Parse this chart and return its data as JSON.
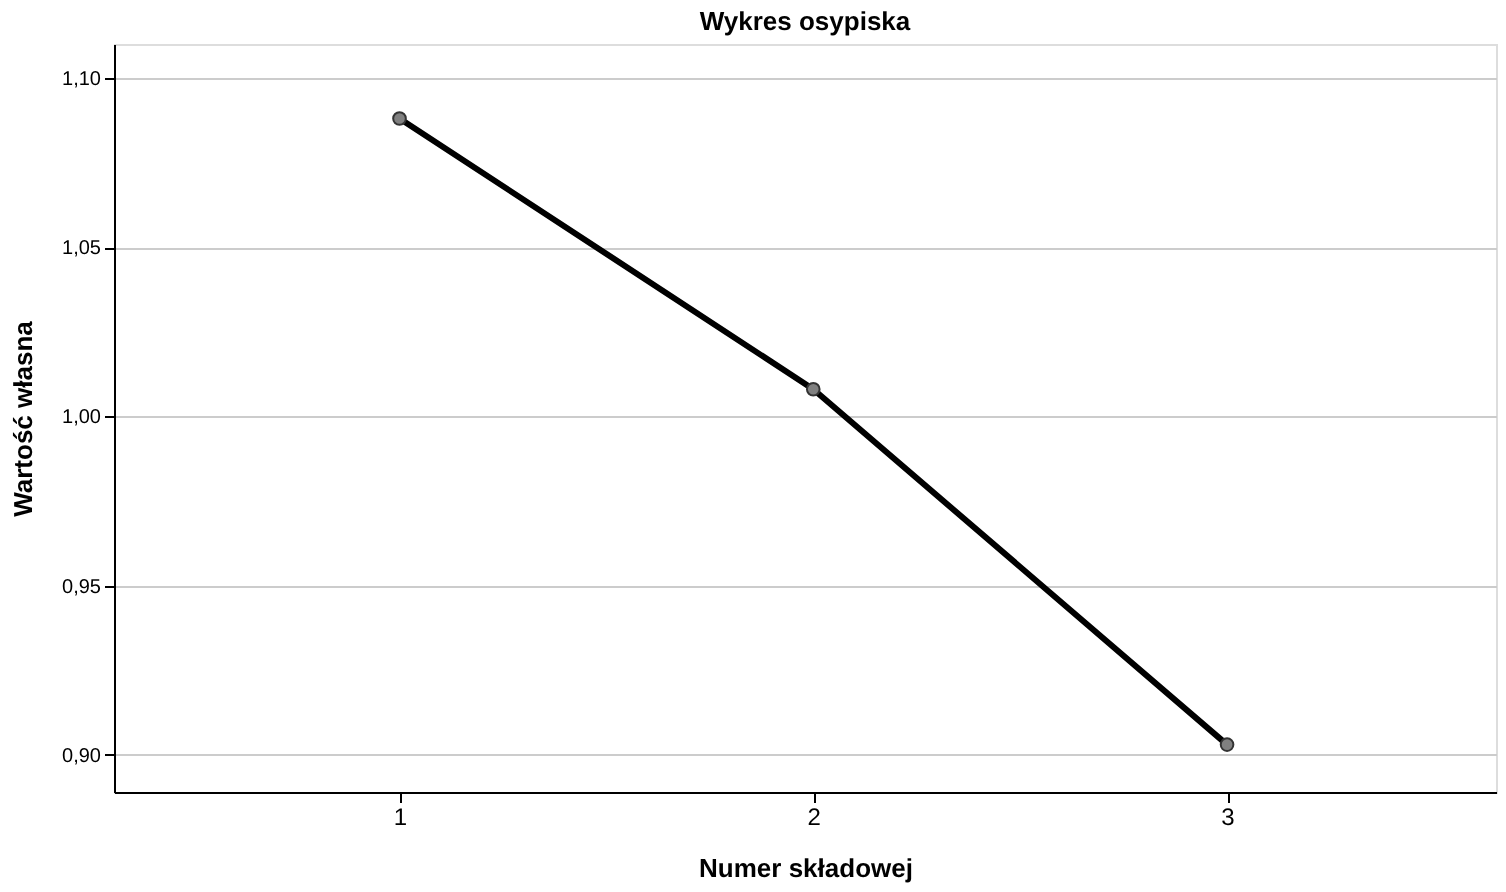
{
  "chart_data": {
    "type": "line",
    "title": "Wykres osypiska",
    "xlabel": "Numer składowej",
    "ylabel": "Wartość własna",
    "x": [
      1,
      2,
      3
    ],
    "series": [
      {
        "color": "#000000",
        "values": [
          1.088,
          1.008,
          0.903
        ]
      }
    ],
    "xlim": [
      0.31,
      3.65
    ],
    "xticks": [
      1,
      2,
      3
    ],
    "ylim": [
      0.889,
      1.11
    ],
    "yticks": [
      {
        "value": 0.9,
        "label": "0,90"
      },
      {
        "value": 0.95,
        "label": "0,95"
      },
      {
        "value": 1.0,
        "label": "1,00"
      },
      {
        "value": 1.05,
        "label": "1,05"
      },
      {
        "value": 1.1,
        "label": "1,10"
      }
    ],
    "grid": "y",
    "marker": "circle",
    "line_style": "solid"
  }
}
